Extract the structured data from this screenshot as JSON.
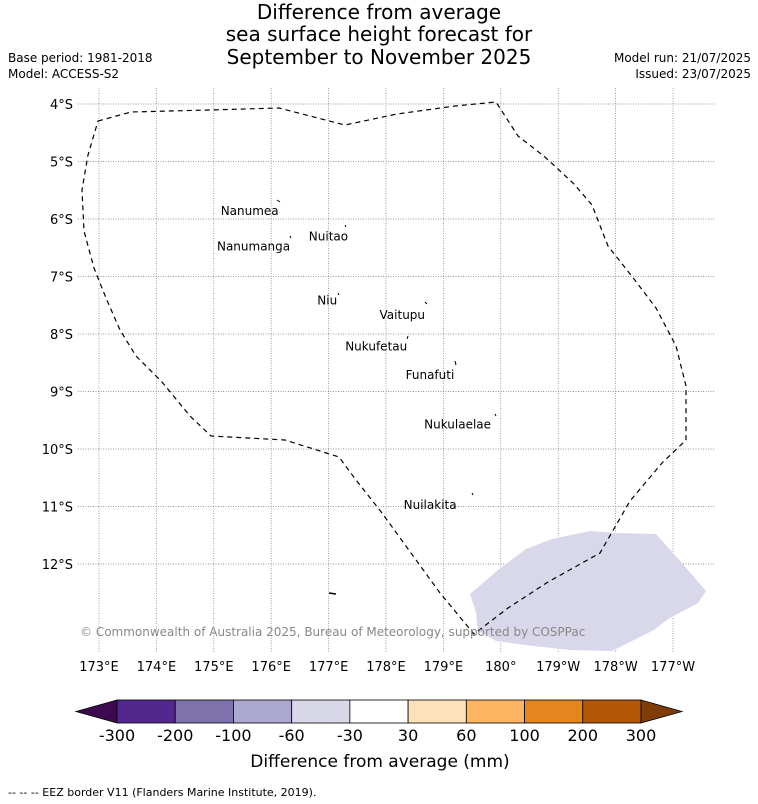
{
  "title": {
    "line1": "Difference from average",
    "line2": "sea surface height forecast for",
    "line3": "September to November 2025"
  },
  "meta": {
    "base_period": "Base period: 1981-2018",
    "model": "Model: ACCESS-S2",
    "model_run": "Model run: 21/07/2025",
    "issued": "Issued: 23/07/2025"
  },
  "map": {
    "lat_labels": [
      "4°S",
      "5°S",
      "6°S",
      "7°S",
      "8°S",
      "9°S",
      "10°S",
      "11°S",
      "12°S"
    ],
    "lon_labels": [
      "173°E",
      "174°E",
      "175°E",
      "176°E",
      "177°E",
      "178°E",
      "179°E",
      "180°",
      "179°W",
      "178°W",
      "177°W"
    ],
    "places": [
      {
        "name": "Nanumea",
        "lon": 176.13,
        "lat": -5.67
      },
      {
        "name": "Nuitao",
        "lon": 177.34,
        "lat": -6.11
      },
      {
        "name": "Nanumanga",
        "lon": 176.33,
        "lat": -6.29
      },
      {
        "name": "Niu",
        "lon": 177.15,
        "lat": -7.23
      },
      {
        "name": "Vaitupu",
        "lon": 178.68,
        "lat": -7.48
      },
      {
        "name": "Nukufetau",
        "lon": 178.37,
        "lat": -8.03
      },
      {
        "name": "Funafuti",
        "lon": 179.19,
        "lat": -8.52
      },
      {
        "name": "Nukulaelae",
        "lon": 179.83,
        "lat": -9.38
      },
      {
        "name": "Nuilakita",
        "lon": 179.23,
        "lat": -10.78
      }
    ],
    "anomaly_region_color": "#d8d8ea",
    "copyright": "© Commonwealth of Australia 2025, Bureau of Meteorology, supported by COSPPac"
  },
  "colorbar": {
    "title": "Difference from average (mm)",
    "ticks": [
      "-300",
      "-200",
      "-100",
      "-60",
      "-30",
      "30",
      "60",
      "100",
      "200",
      "300"
    ],
    "colors": [
      "#3d0a52",
      "#54278f",
      "#7f71ab",
      "#aca7cf",
      "#d8d7e8",
      "#ffffff",
      "#fde1b8",
      "#fdb562",
      "#e5851e",
      "#b35806",
      "#7f3b08"
    ]
  },
  "legend_note": "--  --  -- EEZ border V11 (Flanders Marine Institute, 2019)."
}
